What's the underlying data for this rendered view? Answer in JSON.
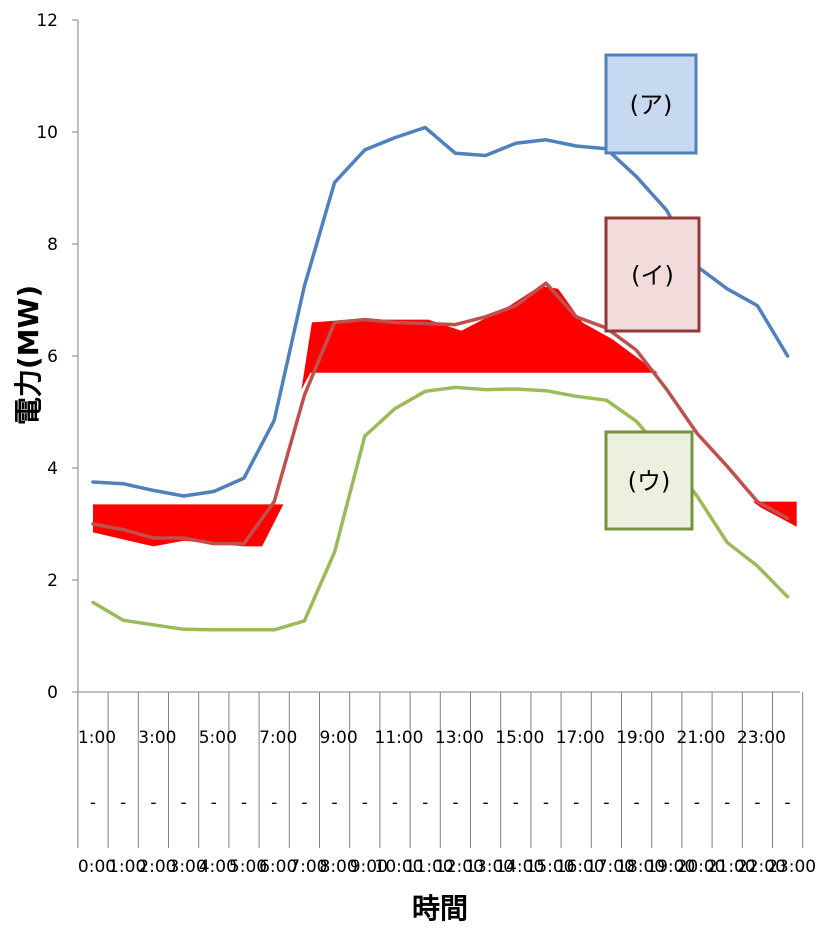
{
  "chart_data": {
    "type": "line",
    "title": "",
    "xlabel": "時間",
    "ylabel": "電力(MW)",
    "ylim": [
      0,
      12
    ],
    "y_ticks": [
      0,
      2,
      4,
      6,
      8,
      10,
      12
    ],
    "x_label_top": [
      "1:00",
      "3:00",
      "5:00",
      "7:00",
      "9:00",
      "11:00",
      "13:00",
      "15:00",
      "17:00",
      "19:00",
      "21:00",
      "23:00"
    ],
    "x_label_mid": "-",
    "x_label_bottom": [
      "0:00",
      "1:00",
      "2:00",
      "3:00",
      "4:00",
      "5:00",
      "6:00",
      "7:00",
      "8:00",
      "9:00",
      "10:00",
      "11:00",
      "12:00",
      "13:00",
      "14:00",
      "15:00",
      "16:00",
      "17:00",
      "18:00",
      "19:00",
      "20:00",
      "21:00",
      "22:00",
      "23:00"
    ],
    "x": [
      1,
      2,
      3,
      4,
      5,
      6,
      7,
      8,
      9,
      10,
      11,
      12,
      13,
      14,
      15,
      16,
      17,
      18,
      19,
      20,
      21,
      22,
      23,
      24
    ],
    "series": [
      {
        "name": "(ア)",
        "color": "#4f81bd",
        "values": [
          3.75,
          3.72,
          3.6,
          3.5,
          3.58,
          3.82,
          4.85,
          7.25,
          9.1,
          9.68,
          9.9,
          10.08,
          9.62,
          9.58,
          9.8,
          9.86,
          9.75,
          9.7,
          9.2,
          8.6,
          7.6,
          7.2,
          6.9,
          6.0
        ]
      },
      {
        "name": "(イ)",
        "color": "#c0504d",
        "values": [
          3.0,
          2.9,
          2.75,
          2.75,
          2.65,
          2.65,
          3.4,
          5.3,
          6.6,
          6.65,
          6.6,
          6.58,
          6.56,
          6.7,
          6.9,
          7.3,
          6.7,
          6.5,
          6.1,
          5.4,
          4.62,
          4.03,
          3.4,
          3.1
        ]
      },
      {
        "name": "(ウ)",
        "color": "#9bbb59",
        "values": [
          1.6,
          1.28,
          1.2,
          1.12,
          1.11,
          1.11,
          1.11,
          1.27,
          2.5,
          4.57,
          5.06,
          5.37,
          5.44,
          5.4,
          5.41,
          5.38,
          5.28,
          5.21,
          4.83,
          4.2,
          3.5,
          2.67,
          2.25,
          1.7
        ]
      }
    ],
    "red_fills": [
      {
        "color": "#ff0000",
        "points": [
          [
            1,
            3.35
          ],
          [
            7.3,
            3.35
          ],
          [
            6.6,
            2.6
          ],
          [
            6,
            2.6
          ],
          [
            4,
            2.7
          ],
          [
            3,
            2.6
          ],
          [
            1,
            2.85
          ]
        ]
      },
      {
        "color": "#ff0000",
        "points": [
          [
            8.25,
            6.6
          ],
          [
            9.5,
            6.65
          ],
          [
            12.1,
            6.65
          ],
          [
            13.2,
            6.45
          ],
          [
            14.8,
            6.9
          ],
          [
            15.8,
            7.25
          ],
          [
            16.4,
            7.2
          ],
          [
            17.2,
            6.6
          ],
          [
            18.2,
            6.3
          ],
          [
            19.7,
            5.7
          ],
          [
            8.2,
            5.7
          ],
          [
            7.9,
            5.4
          ]
        ]
      },
      {
        "color": "#ff0000",
        "points": [
          [
            22.85,
            3.4
          ],
          [
            24.3,
            3.4
          ],
          [
            24.3,
            2.95
          ],
          [
            23.1,
            3.3
          ]
        ]
      }
    ],
    "callouts": [
      {
        "label": "(ア)",
        "fill": "#c6d9f1",
        "border": "#4f81bd"
      },
      {
        "label": "(イ)",
        "fill": "#f2dcdb",
        "border": "#953735"
      },
      {
        "label": "(ウ)",
        "fill": "#ebf1de",
        "border": "#76923c"
      }
    ]
  }
}
